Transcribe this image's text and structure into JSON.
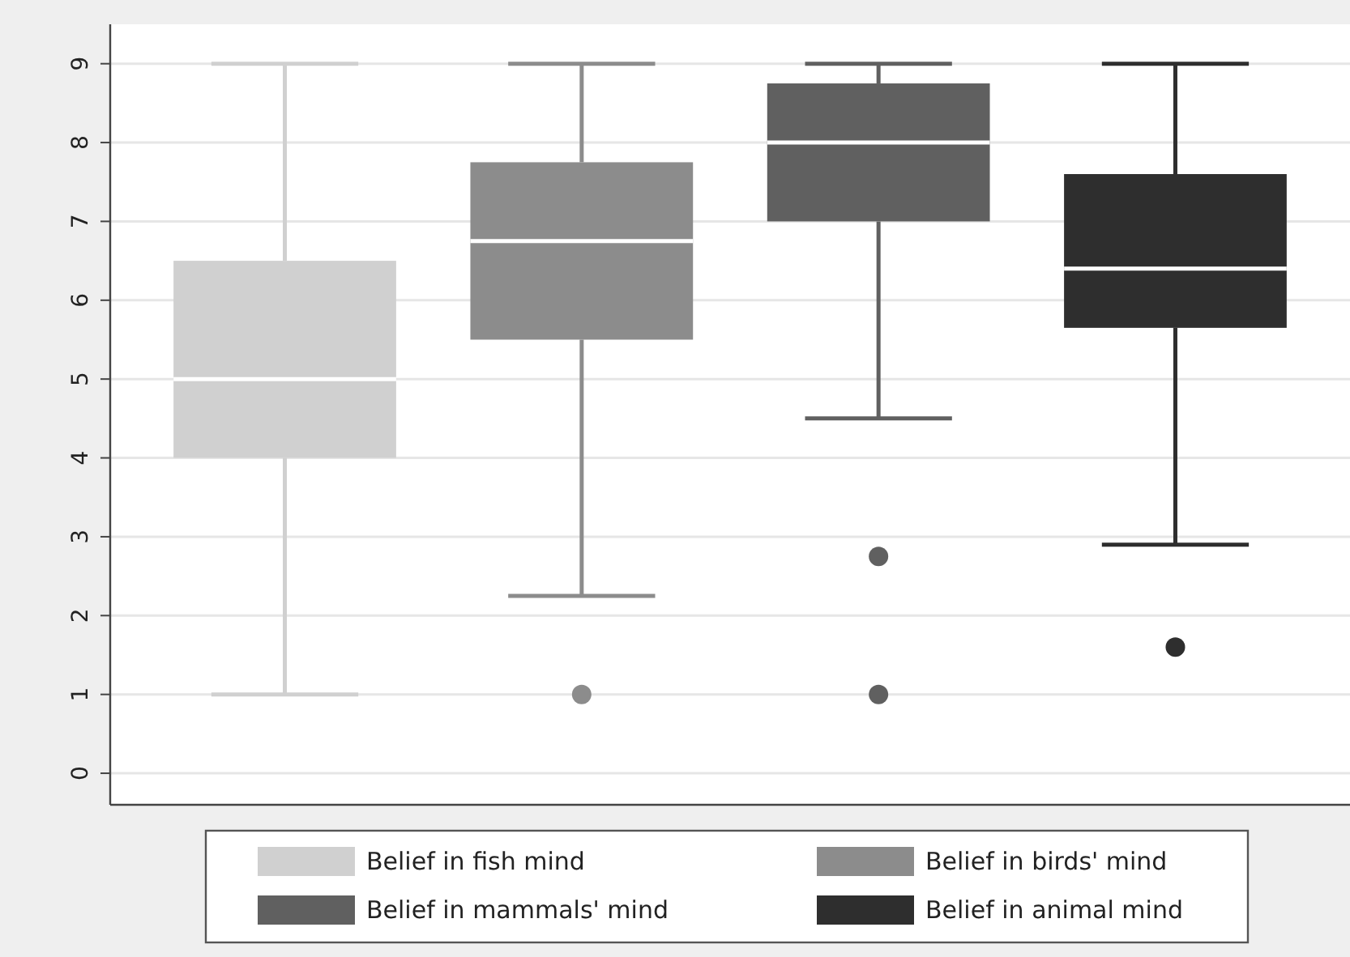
{
  "chart_data": {
    "type": "box",
    "categories": [
      null
    ],
    "ylim": [
      -0.4,
      9.5
    ],
    "yticks": [
      0,
      1,
      2,
      3,
      4,
      5,
      6,
      7,
      8,
      9
    ],
    "grid": "y",
    "legend": "bottom",
    "series": [
      {
        "name": "Belief in fish mind",
        "color": "#d0d0d0",
        "boxes": [
          {
            "low": 1,
            "q1": 4,
            "median": 5,
            "q3": 6.5,
            "high": 9
          }
        ]
      },
      {
        "name": "Belief in birds' mind",
        "color": "#8c8c8c",
        "boxes": [
          {
            "low": 2.25,
            "q1": 5.5,
            "median": 6.75,
            "q3": 7.75,
            "high": 9,
            "outliers": [
              1
            ]
          }
        ]
      },
      {
        "name": "Belief in mammals' mind",
        "color": "#606060",
        "boxes": [
          {
            "low": 4.5,
            "q1": 7,
            "median": 8,
            "q3": 8.75,
            "high": 9,
            "outliers": [
              2.75,
              1
            ]
          }
        ]
      },
      {
        "name": "Belief in animal mind",
        "color": "#2e2e2e",
        "boxes": [
          {
            "low": 2.9,
            "q1": 5.65,
            "median": 6.4,
            "q3": 7.6,
            "high": 9,
            "outliers": [
              1.6
            ]
          }
        ]
      }
    ]
  }
}
